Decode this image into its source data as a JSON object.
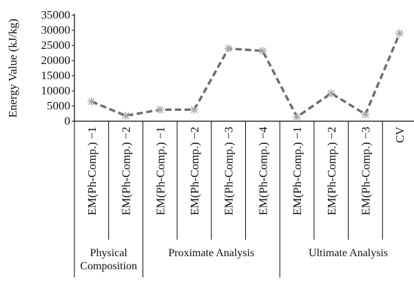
{
  "chart_data": {
    "type": "line",
    "ylabel": "Energy Value (kJ/kg)",
    "ylim": [
      0,
      35000
    ],
    "yticks": [
      0,
      5000,
      10000,
      15000,
      20000,
      25000,
      30000,
      35000
    ],
    "categories": [
      "EM(Ph-Comp.) −1",
      "EM(Ph-Comp.) −2",
      "EM(Ph-Comp.) −1",
      "EM(Ph-Comp.) −2",
      "EM(Ph-Comp.) −3",
      "EM(Ph-Comp.) −4",
      "EM(Ph-Comp.) −1",
      "EM(Ph-Comp.) −2",
      "EM(Ph-Comp.) −3",
      "CV"
    ],
    "groups": [
      {
        "label_lines": [
          "Physical",
          "Composition"
        ],
        "start": 0,
        "end": 1
      },
      {
        "label_lines": [
          "Proximate Analysis"
        ],
        "start": 2,
        "end": 5
      },
      {
        "label_lines": [
          "Ultimate Analysis"
        ],
        "start": 6,
        "end": 9
      }
    ],
    "series": [
      {
        "values": [
          6500,
          1800,
          3800,
          3800,
          24000,
          23200,
          1400,
          9200,
          2300,
          29000
        ],
        "color": "#6e6e6e",
        "marker_color": "#a9a9a9",
        "line_style": "dashed",
        "marker": "star"
      }
    ],
    "grid": false,
    "legend": "none"
  }
}
